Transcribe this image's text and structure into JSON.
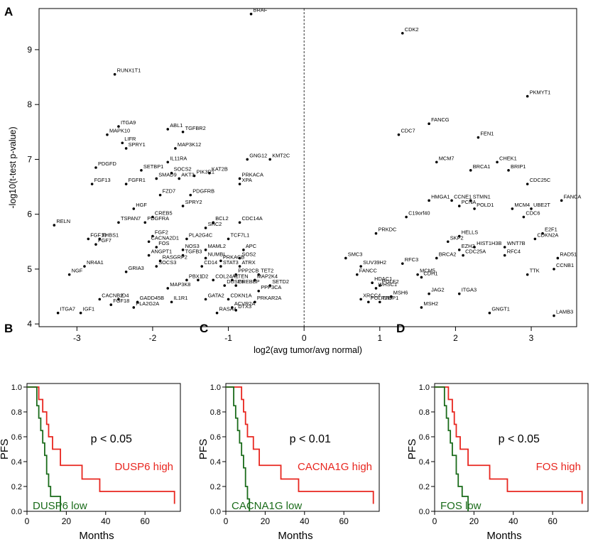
{
  "chart_data": [
    {
      "panel": "A",
      "type": "scatter",
      "title": "",
      "xlabel": "log2(avg tumor/avg normal)",
      "ylabel": "-log10(t-test p-value)",
      "xlim": [
        -3.5,
        3.6
      ],
      "ylim": [
        3.95,
        9.75
      ],
      "xticks": [
        -3,
        -2,
        -1,
        0,
        1,
        2,
        3
      ],
      "xtick_labels": [
        "-3",
        "-2",
        "-1",
        "0",
        "1",
        "2",
        "3"
      ],
      "yticks": [
        4,
        5,
        6,
        7,
        8,
        9
      ],
      "ytick_labels": [
        "4",
        "5",
        "6",
        "7",
        "8",
        "9"
      ],
      "vline": 0,
      "points": [
        {
          "gene": "BRAF",
          "x": -0.7,
          "y": 9.65
        },
        {
          "gene": "RUNX1T1",
          "x": -2.5,
          "y": 8.55
        },
        {
          "gene": "ITGA9",
          "x": -2.45,
          "y": 7.6
        },
        {
          "gene": "MAPK10",
          "x": -2.6,
          "y": 7.45
        },
        {
          "gene": "LIFR",
          "x": -2.4,
          "y": 7.3
        },
        {
          "gene": "SPRY1",
          "x": -2.35,
          "y": 7.2
        },
        {
          "gene": "ABL1",
          "x": -1.8,
          "y": 7.55
        },
        {
          "gene": "TGFBR2",
          "x": -1.6,
          "y": 7.5
        },
        {
          "gene": "MAP3K12",
          "x": -1.7,
          "y": 7.2
        },
        {
          "gene": "IL11RA",
          "x": -1.8,
          "y": 6.95
        },
        {
          "gene": "PDGFD",
          "x": -2.75,
          "y": 6.85
        },
        {
          "gene": "SETBP1",
          "x": -2.15,
          "y": 6.8
        },
        {
          "gene": "SOCS2",
          "x": -1.75,
          "y": 6.75
        },
        {
          "gene": "SMAD9",
          "x": -1.95,
          "y": 6.65
        },
        {
          "gene": "AKT3",
          "x": -1.65,
          "y": 6.65
        },
        {
          "gene": "PIK3R1",
          "x": -1.45,
          "y": 6.7
        },
        {
          "gene": "KAT2B",
          "x": -1.25,
          "y": 6.75
        },
        {
          "gene": "GNG12",
          "x": -0.75,
          "y": 7.0
        },
        {
          "gene": "KMT2C",
          "x": -0.45,
          "y": 7.0
        },
        {
          "gene": "PRKACA",
          "x": -0.85,
          "y": 6.65
        },
        {
          "gene": "XPA",
          "x": -0.85,
          "y": 6.55
        },
        {
          "gene": "FGF13",
          "x": -2.8,
          "y": 6.55
        },
        {
          "gene": "FGFR1",
          "x": -2.35,
          "y": 6.55
        },
        {
          "gene": "FZD7",
          "x": -1.9,
          "y": 6.35
        },
        {
          "gene": "PDGFRB",
          "x": -1.5,
          "y": 6.35
        },
        {
          "gene": "HGF",
          "x": -2.25,
          "y": 6.1
        },
        {
          "gene": "SPRY2",
          "x": -1.6,
          "y": 6.15
        },
        {
          "gene": "CREB5",
          "x": -2.0,
          "y": 5.95
        },
        {
          "gene": "TSPAN7",
          "x": -2.45,
          "y": 5.85
        },
        {
          "gene": "PDGFRA",
          "x": -2.1,
          "y": 5.85
        },
        {
          "gene": "RELN",
          "x": -3.3,
          "y": 5.8
        },
        {
          "gene": "BCL2",
          "x": -1.2,
          "y": 5.85
        },
        {
          "gene": "CDC14A",
          "x": -0.85,
          "y": 5.85
        },
        {
          "gene": "SHC2",
          "x": -1.3,
          "y": 5.75
        },
        {
          "gene": "FGF2",
          "x": -2.0,
          "y": 5.6
        },
        {
          "gene": "PLA2G4C",
          "x": -1.55,
          "y": 5.55
        },
        {
          "gene": "TCF7L1",
          "x": -1.0,
          "y": 5.55
        },
        {
          "gene": "FGF10",
          "x": -2.85,
          "y": 5.55
        },
        {
          "gene": "THBS1",
          "x": -2.7,
          "y": 5.55
        },
        {
          "gene": "CACNA2D1",
          "x": -2.05,
          "y": 5.5
        },
        {
          "gene": "FGF7",
          "x": -2.75,
          "y": 5.45
        },
        {
          "gene": "FOS",
          "x": -1.95,
          "y": 5.4
        },
        {
          "gene": "NOS3",
          "x": -1.6,
          "y": 5.35
        },
        {
          "gene": "MAML2",
          "x": -1.3,
          "y": 5.35
        },
        {
          "gene": "APC",
          "x": -0.8,
          "y": 5.35
        },
        {
          "gene": "TGFB3",
          "x": -1.6,
          "y": 5.25
        },
        {
          "gene": "ANGPT1",
          "x": -2.05,
          "y": 5.25
        },
        {
          "gene": "RASGRP2",
          "x": -1.9,
          "y": 5.15
        },
        {
          "gene": "NUMBL",
          "x": -1.3,
          "y": 5.2
        },
        {
          "gene": "PRKACB",
          "x": -1.1,
          "y": 5.15
        },
        {
          "gene": "SOS2",
          "x": -0.85,
          "y": 5.2
        },
        {
          "gene": "NR4A1",
          "x": -2.9,
          "y": 5.05
        },
        {
          "gene": "SOCS3",
          "x": -1.95,
          "y": 5.05
        },
        {
          "gene": "CD14",
          "x": -1.35,
          "y": 5.05
        },
        {
          "gene": "STAT3",
          "x": -1.1,
          "y": 5.05
        },
        {
          "gene": "ATRX",
          "x": -0.85,
          "y": 5.05
        },
        {
          "gene": "GRIA3",
          "x": -2.35,
          "y": 4.95
        },
        {
          "gene": "NGF",
          "x": -3.1,
          "y": 4.9
        },
        {
          "gene": "PPP2CB",
          "x": -0.9,
          "y": 4.9
        },
        {
          "gene": "TET2",
          "x": -0.6,
          "y": 4.9
        },
        {
          "gene": "PBX1",
          "x": -1.55,
          "y": 4.8
        },
        {
          "gene": "ID2",
          "x": -1.4,
          "y": 4.8
        },
        {
          "gene": "COL24A1",
          "x": -1.2,
          "y": 4.8
        },
        {
          "gene": "PTEN",
          "x": -0.95,
          "y": 4.8
        },
        {
          "gene": "MAP2K4",
          "x": -0.65,
          "y": 4.8
        },
        {
          "gene": "SETD2",
          "x": -0.45,
          "y": 4.7
        },
        {
          "gene": "DUSP6",
          "x": -1.05,
          "y": 4.7
        },
        {
          "gene": "CREBBP",
          "x": -0.9,
          "y": 4.7
        },
        {
          "gene": "PPP3CA",
          "x": -0.6,
          "y": 4.6
        },
        {
          "gene": "MAP3K8",
          "x": -1.8,
          "y": 4.65
        },
        {
          "gene": "CACNB2",
          "x": -2.7,
          "y": 4.45
        },
        {
          "gene": "ID4",
          "x": -2.45,
          "y": 4.45
        },
        {
          "gene": "GATA2",
          "x": -1.3,
          "y": 4.45
        },
        {
          "gene": "CDKN1A",
          "x": -1.0,
          "y": 4.45
        },
        {
          "gene": "GADD45B",
          "x": -2.2,
          "y": 4.4
        },
        {
          "gene": "FGF18",
          "x": -2.55,
          "y": 4.35
        },
        {
          "gene": "PLA2G2A",
          "x": -2.25,
          "y": 4.3
        },
        {
          "gene": "IL1R1",
          "x": -1.75,
          "y": 4.4
        },
        {
          "gene": "PRKAR2A",
          "x": -0.65,
          "y": 4.4
        },
        {
          "gene": "ACVR2A",
          "x": -0.95,
          "y": 4.3
        },
        {
          "gene": "DTX3",
          "x": -0.9,
          "y": 4.25
        },
        {
          "gene": "RASA4",
          "x": -1.15,
          "y": 4.2
        },
        {
          "gene": "ITGA7",
          "x": -3.25,
          "y": 4.2
        },
        {
          "gene": "IGF1",
          "x": -2.95,
          "y": 4.2
        },
        {
          "gene": "CDK2",
          "x": 1.3,
          "y": 9.3
        },
        {
          "gene": "PKMYT1",
          "x": 2.95,
          "y": 8.15
        },
        {
          "gene": "FANCG",
          "x": 1.65,
          "y": 7.65
        },
        {
          "gene": "CDC7",
          "x": 1.25,
          "y": 7.45
        },
        {
          "gene": "FEN1",
          "x": 2.3,
          "y": 7.4
        },
        {
          "gene": "MCM7",
          "x": 1.75,
          "y": 6.95
        },
        {
          "gene": "CHEK1",
          "x": 2.55,
          "y": 6.95
        },
        {
          "gene": "BRCA1",
          "x": 2.2,
          "y": 6.8
        },
        {
          "gene": "BRIP1",
          "x": 2.7,
          "y": 6.8
        },
        {
          "gene": "CDC25C",
          "x": 2.95,
          "y": 6.55
        },
        {
          "gene": "HMGA1",
          "x": 1.65,
          "y": 6.25
        },
        {
          "gene": "CCNE1",
          "x": 1.95,
          "y": 6.25
        },
        {
          "gene": "STMN1",
          "x": 2.2,
          "y": 6.25
        },
        {
          "gene": "PCNA",
          "x": 2.05,
          "y": 6.15
        },
        {
          "gene": "POLD1",
          "x": 2.25,
          "y": 6.1
        },
        {
          "gene": "FANCA",
          "x": 3.4,
          "y": 6.25
        },
        {
          "gene": "MCM4",
          "x": 2.75,
          "y": 6.1
        },
        {
          "gene": "UBE2T",
          "x": 3.0,
          "y": 6.1
        },
        {
          "gene": "CDC6",
          "x": 2.9,
          "y": 5.95
        },
        {
          "gene": "C19orf40",
          "x": 1.35,
          "y": 5.95
        },
        {
          "gene": "PRKDC",
          "x": 0.95,
          "y": 5.65
        },
        {
          "gene": "HELLS",
          "x": 2.05,
          "y": 5.6
        },
        {
          "gene": "E2F1",
          "x": 3.15,
          "y": 5.65
        },
        {
          "gene": "CDKN2A",
          "x": 3.05,
          "y": 5.55
        },
        {
          "gene": "SKP2",
          "x": 1.9,
          "y": 5.5
        },
        {
          "gene": "HIST1H3B",
          "x": 2.25,
          "y": 5.4
        },
        {
          "gene": "WNT7B",
          "x": 2.65,
          "y": 5.4
        },
        {
          "gene": "EZH2",
          "x": 2.05,
          "y": 5.35
        },
        {
          "gene": "CDC25A",
          "x": 2.1,
          "y": 5.25
        },
        {
          "gene": "RFC4",
          "x": 2.65,
          "y": 5.25
        },
        {
          "gene": "SMC3",
          "x": 0.55,
          "y": 5.2
        },
        {
          "gene": "SUV39H2",
          "x": 0.75,
          "y": 5.05
        },
        {
          "gene": "BRCA2",
          "x": 1.75,
          "y": 5.2
        },
        {
          "gene": "RAD51",
          "x": 3.35,
          "y": 5.2
        },
        {
          "gene": "RFC3",
          "x": 1.3,
          "y": 5.1
        },
        {
          "gene": "CCNB1",
          "x": 3.3,
          "y": 5.0
        },
        {
          "gene": "FANCC",
          "x": 0.7,
          "y": 4.9
        },
        {
          "gene": "MCM5",
          "x": 1.5,
          "y": 4.9
        },
        {
          "gene": "CDH1",
          "x": 1.55,
          "y": 4.85
        },
        {
          "gene": "TTK",
          "x": 2.95,
          "y": 4.9
        },
        {
          "gene": "HDAC1",
          "x": 0.9,
          "y": 4.75
        },
        {
          "gene": "POLE2",
          "x": 1.0,
          "y": 4.7
        },
        {
          "gene": "WHSC1",
          "x": 0.95,
          "y": 4.65
        },
        {
          "gene": "JAG2",
          "x": 1.65,
          "y": 4.55
        },
        {
          "gene": "ITGA3",
          "x": 2.05,
          "y": 4.55
        },
        {
          "gene": "XRCC4",
          "x": 0.75,
          "y": 4.45
        },
        {
          "gene": "MSH6",
          "x": 1.15,
          "y": 4.5
        },
        {
          "gene": "POLR2H",
          "x": 0.85,
          "y": 4.4
        },
        {
          "gene": "TFDP1",
          "x": 1.0,
          "y": 4.4
        },
        {
          "gene": "MSH2",
          "x": 1.55,
          "y": 4.3
        },
        {
          "gene": "GNGT1",
          "x": 2.45,
          "y": 4.2
        },
        {
          "gene": "LAMB3",
          "x": 3.3,
          "y": 4.15
        }
      ]
    },
    {
      "panel": "B",
      "type": "line",
      "subtype": "step",
      "xlabel": "Months",
      "ylabel": "PFS",
      "xlim": [
        0,
        78
      ],
      "ylim": [
        0,
        1.0
      ],
      "xticks": [
        0,
        20,
        40,
        60
      ],
      "xtick_labels": [
        "0",
        "20",
        "40",
        "60"
      ],
      "yticks": [
        0.0,
        0.2,
        0.4,
        0.6,
        0.8,
        1.0
      ],
      "ytick_labels": [
        "0.0",
        "0.2",
        "0.4",
        "0.6",
        "0.8",
        "1.0"
      ],
      "annotation": "p < 0.05",
      "series": [
        {
          "name": "DUSP6 high",
          "color": "#e8261f",
          "x": [
            0,
            6,
            8,
            10,
            11,
            13,
            17,
            28,
            37,
            75
          ],
          "y": [
            1.0,
            0.9,
            0.8,
            0.7,
            0.6,
            0.5,
            0.37,
            0.26,
            0.16,
            0.06
          ]
        },
        {
          "name": "DUSP6 low",
          "color": "#1a6b1a",
          "x": [
            0,
            5,
            6,
            7,
            8,
            9,
            10,
            11,
            12,
            17
          ],
          "y": [
            1.0,
            0.85,
            0.75,
            0.65,
            0.55,
            0.45,
            0.3,
            0.2,
            0.12,
            0.0
          ]
        }
      ]
    },
    {
      "panel": "C",
      "type": "line",
      "subtype": "step",
      "xlabel": "Months",
      "ylabel": "PFS",
      "xlim": [
        0,
        78
      ],
      "ylim": [
        0,
        1.0
      ],
      "xticks": [
        0,
        20,
        40,
        60
      ],
      "xtick_labels": [
        "0",
        "20",
        "40",
        "60"
      ],
      "yticks": [
        0.0,
        0.2,
        0.4,
        0.6,
        0.8,
        1.0
      ],
      "ytick_labels": [
        "0.0",
        "0.2",
        "0.4",
        "0.6",
        "0.8",
        "1.0"
      ],
      "annotation": "p < 0.01",
      "series": [
        {
          "name": "CACNA1G high",
          "color": "#e8261f",
          "x": [
            0,
            8,
            9,
            10,
            11,
            14,
            17,
            28,
            37,
            75
          ],
          "y": [
            1.0,
            0.9,
            0.8,
            0.7,
            0.6,
            0.5,
            0.37,
            0.26,
            0.16,
            0.06
          ]
        },
        {
          "name": "CACNA1G low",
          "color": "#1a6b1a",
          "x": [
            0,
            4,
            5,
            6,
            7,
            8,
            9,
            10,
            11,
            12
          ],
          "y": [
            1.0,
            0.85,
            0.75,
            0.65,
            0.55,
            0.45,
            0.35,
            0.2,
            0.1,
            0.0
          ]
        }
      ]
    },
    {
      "panel": "D",
      "type": "line",
      "subtype": "step",
      "xlabel": "Months",
      "ylabel": "PFS",
      "xlim": [
        0,
        78
      ],
      "ylim": [
        0,
        1.0
      ],
      "xticks": [
        0,
        20,
        40,
        60
      ],
      "xtick_labels": [
        "0",
        "20",
        "40",
        "60"
      ],
      "yticks": [
        0.0,
        0.2,
        0.4,
        0.6,
        0.8,
        1.0
      ],
      "ytick_labels": [
        "0.0",
        "0.2",
        "0.4",
        "0.6",
        "0.8",
        "1.0"
      ],
      "annotation": "p < 0.05",
      "series": [
        {
          "name": "FOS high",
          "color": "#e8261f",
          "x": [
            0,
            7,
            9,
            10,
            11,
            13,
            17,
            28,
            37,
            75
          ],
          "y": [
            1.0,
            0.9,
            0.8,
            0.7,
            0.6,
            0.5,
            0.37,
            0.26,
            0.16,
            0.06
          ]
        },
        {
          "name": "FOS low",
          "color": "#1a6b1a",
          "x": [
            0,
            5,
            6,
            7,
            8,
            9,
            11,
            12,
            14,
            17
          ],
          "y": [
            1.0,
            0.85,
            0.75,
            0.65,
            0.55,
            0.45,
            0.3,
            0.2,
            0.12,
            0.0
          ]
        }
      ]
    }
  ]
}
